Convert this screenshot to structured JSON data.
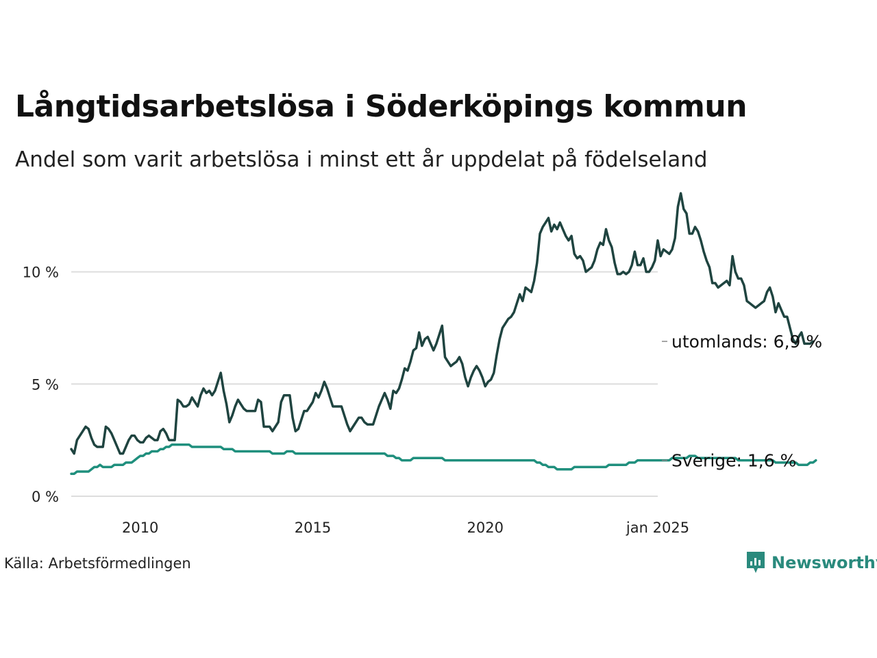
{
  "header": {
    "title": "Långtidsarbetslösa i Söderköpings kommun",
    "subtitle": "Andel som varit arbetslösa i minst ett år uppdelat på födelseland"
  },
  "footer": {
    "source": "Källa: Arbetsförmedlingen",
    "brand": "Newsworthy"
  },
  "colors": {
    "utomlands": "#1f4440",
    "sverige": "#1f8f7d",
    "grid": "#dddddd",
    "brand": "#2a8a7d"
  },
  "chart_data": {
    "type": "line",
    "title": "Långtidsarbetslösa i Söderköpings kommun",
    "xlabel": "",
    "ylabel": "",
    "ylim": [
      0,
      13.5
    ],
    "xlim": [
      2008.0,
      2025.0
    ],
    "x_start": 2008.0,
    "step_months": 1,
    "x_ticks": [
      2010,
      2015,
      2020,
      2025
    ],
    "x_tick_labels": [
      "2010",
      "2015",
      "2020",
      "jan 2025"
    ],
    "y_ticks": [
      0,
      5,
      10
    ],
    "y_tick_labels": [
      "0 %",
      "5 %",
      "10 %"
    ],
    "grid": true,
    "series": [
      {
        "name": "utomlands",
        "end_label": "utomlands: 6,9 %",
        "values": [
          2.1,
          1.9,
          2.5,
          2.7,
          2.9,
          3.1,
          3.0,
          2.6,
          2.3,
          2.2,
          2.2,
          2.2,
          3.1,
          3.0,
          2.8,
          2.5,
          2.2,
          1.9,
          1.9,
          2.2,
          2.5,
          2.7,
          2.7,
          2.5,
          2.4,
          2.4,
          2.6,
          2.7,
          2.6,
          2.5,
          2.5,
          2.9,
          3.0,
          2.8,
          2.5,
          2.5,
          2.5,
          4.3,
          4.2,
          4.0,
          4.0,
          4.1,
          4.4,
          4.2,
          4.0,
          4.5,
          4.8,
          4.6,
          4.7,
          4.5,
          4.7,
          5.1,
          5.5,
          4.7,
          4.1,
          3.3,
          3.6,
          4.0,
          4.3,
          4.1,
          3.9,
          3.8,
          3.8,
          3.8,
          3.8,
          4.3,
          4.2,
          3.1,
          3.1,
          3.1,
          2.9,
          3.1,
          3.3,
          4.2,
          4.5,
          4.5,
          4.5,
          3.5,
          2.9,
          3.0,
          3.4,
          3.8,
          3.8,
          4.0,
          4.2,
          4.6,
          4.4,
          4.7,
          5.1,
          4.8,
          4.4,
          4.0,
          4.0,
          4.0,
          4.0,
          3.6,
          3.2,
          2.9,
          3.1,
          3.3,
          3.5,
          3.5,
          3.3,
          3.2,
          3.2,
          3.2,
          3.6,
          4.0,
          4.3,
          4.6,
          4.3,
          3.9,
          4.7,
          4.6,
          4.8,
          5.2,
          5.7,
          5.6,
          6.0,
          6.5,
          6.6,
          7.3,
          6.7,
          7.0,
          7.1,
          6.8,
          6.5,
          6.8,
          7.2,
          7.6,
          6.2,
          6.0,
          5.8,
          5.9,
          6.0,
          6.2,
          5.9,
          5.3,
          4.9,
          5.3,
          5.6,
          5.8,
          5.6,
          5.3,
          4.9,
          5.1,
          5.2,
          5.5,
          6.3,
          7.0,
          7.5,
          7.7,
          7.9,
          8.0,
          8.2,
          8.6,
          9.0,
          8.7,
          9.3,
          9.2,
          9.1,
          9.6,
          10.4,
          11.7,
          12.0,
          12.2,
          12.4,
          11.8,
          12.1,
          11.9,
          12.2,
          11.9,
          11.6,
          11.4,
          11.6,
          10.8,
          10.6,
          10.7,
          10.5,
          10.0,
          10.1,
          10.2,
          10.5,
          11.0,
          11.3,
          11.2,
          11.9,
          11.4,
          11.1,
          10.4,
          9.9,
          9.9,
          10.0,
          9.9,
          10.0,
          10.3,
          10.9,
          10.3,
          10.3,
          10.6,
          10.0,
          10.0,
          10.2,
          10.5,
          11.4,
          10.7,
          11.0,
          10.9,
          10.8,
          11.0,
          11.5,
          12.9,
          13.5,
          12.8,
          12.6,
          11.7,
          11.7,
          12.0,
          11.8,
          11.4,
          10.9,
          10.5,
          10.2,
          9.5,
          9.5,
          9.3,
          9.4,
          9.5,
          9.6,
          9.4,
          10.7,
          10.0,
          9.7,
          9.7,
          9.4,
          8.7,
          8.6,
          8.5,
          8.4,
          8.5,
          8.6,
          8.7,
          9.1,
          9.3,
          8.9,
          8.2,
          8.6,
          8.3,
          8.0,
          8.0,
          7.5,
          7.0,
          6.8,
          7.1,
          7.3,
          6.8,
          6.8,
          6.8,
          6.9
        ]
      },
      {
        "name": "Sverige",
        "end_label": "Sverige: 1,6 %",
        "values": [
          1.0,
          1.0,
          1.1,
          1.1,
          1.1,
          1.1,
          1.1,
          1.2,
          1.3,
          1.3,
          1.4,
          1.3,
          1.3,
          1.3,
          1.3,
          1.4,
          1.4,
          1.4,
          1.4,
          1.5,
          1.5,
          1.5,
          1.6,
          1.7,
          1.8,
          1.8,
          1.9,
          1.9,
          2.0,
          2.0,
          2.0,
          2.1,
          2.1,
          2.2,
          2.2,
          2.3,
          2.3,
          2.3,
          2.3,
          2.3,
          2.3,
          2.3,
          2.2,
          2.2,
          2.2,
          2.2,
          2.2,
          2.2,
          2.2,
          2.2,
          2.2,
          2.2,
          2.2,
          2.1,
          2.1,
          2.1,
          2.1,
          2.0,
          2.0,
          2.0,
          2.0,
          2.0,
          2.0,
          2.0,
          2.0,
          2.0,
          2.0,
          2.0,
          2.0,
          2.0,
          1.9,
          1.9,
          1.9,
          1.9,
          1.9,
          2.0,
          2.0,
          2.0,
          1.9,
          1.9,
          1.9,
          1.9,
          1.9,
          1.9,
          1.9,
          1.9,
          1.9,
          1.9,
          1.9,
          1.9,
          1.9,
          1.9,
          1.9,
          1.9,
          1.9,
          1.9,
          1.9,
          1.9,
          1.9,
          1.9,
          1.9,
          1.9,
          1.9,
          1.9,
          1.9,
          1.9,
          1.9,
          1.9,
          1.9,
          1.9,
          1.8,
          1.8,
          1.8,
          1.7,
          1.7,
          1.6,
          1.6,
          1.6,
          1.6,
          1.7,
          1.7,
          1.7,
          1.7,
          1.7,
          1.7,
          1.7,
          1.7,
          1.7,
          1.7,
          1.7,
          1.6,
          1.6,
          1.6,
          1.6,
          1.6,
          1.6,
          1.6,
          1.6,
          1.6,
          1.6,
          1.6,
          1.6,
          1.6,
          1.6,
          1.6,
          1.6,
          1.6,
          1.6,
          1.6,
          1.6,
          1.6,
          1.6,
          1.6,
          1.6,
          1.6,
          1.6,
          1.6,
          1.6,
          1.6,
          1.6,
          1.6,
          1.6,
          1.5,
          1.5,
          1.4,
          1.4,
          1.3,
          1.3,
          1.3,
          1.2,
          1.2,
          1.2,
          1.2,
          1.2,
          1.2,
          1.3,
          1.3,
          1.3,
          1.3,
          1.3,
          1.3,
          1.3,
          1.3,
          1.3,
          1.3,
          1.3,
          1.3,
          1.4,
          1.4,
          1.4,
          1.4,
          1.4,
          1.4,
          1.4,
          1.5,
          1.5,
          1.5,
          1.6,
          1.6,
          1.6,
          1.6,
          1.6,
          1.6,
          1.6,
          1.6,
          1.6,
          1.6,
          1.6,
          1.6,
          1.7,
          1.7,
          1.7,
          1.7,
          1.7,
          1.7,
          1.8,
          1.8,
          1.8,
          1.7,
          1.7,
          1.7,
          1.7,
          1.7,
          1.7,
          1.7,
          1.7,
          1.7,
          1.7,
          1.7,
          1.7,
          1.7,
          1.7,
          1.6,
          1.6,
          1.6,
          1.6,
          1.6,
          1.6,
          1.6,
          1.6,
          1.6,
          1.6,
          1.6,
          1.6,
          1.6,
          1.5,
          1.5,
          1.5,
          1.5,
          1.5,
          1.5,
          1.5,
          1.5,
          1.4,
          1.4,
          1.4,
          1.4,
          1.5,
          1.5,
          1.6
        ]
      }
    ]
  }
}
